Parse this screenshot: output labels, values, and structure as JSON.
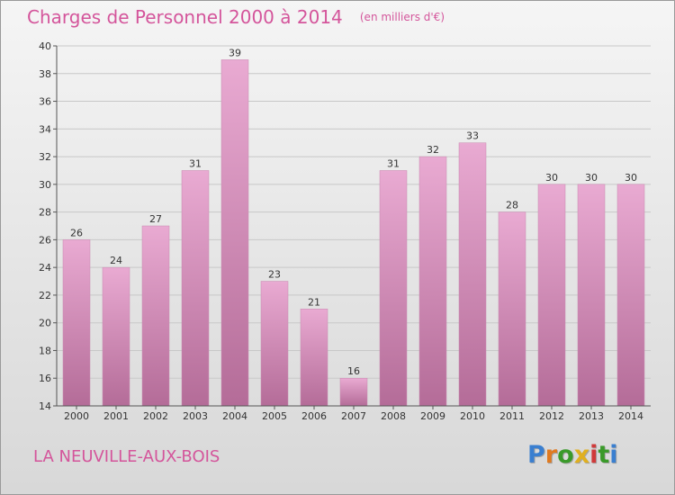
{
  "title": "Charges de Personnel 2000 à 2014",
  "subtitle": "(en milliers d'€)",
  "commune": "LA NEUVILLE-AUX-BOIS",
  "logo": {
    "text": "Proxiti",
    "letter_colors": [
      "#3a7fd0",
      "#e07a20",
      "#3a9a2a",
      "#e0b020",
      "#d03a3a",
      "#3a9a2a",
      "#3a7fd0"
    ]
  },
  "colors": {
    "bar_top": "#e9aad2",
    "bar_bottom": "#b46c98",
    "text_accent": "#d4559b",
    "grid": "#c8c8c8"
  },
  "chart_data": {
    "type": "bar",
    "title": "Charges de Personnel 2000 à 2014",
    "subtitle": "(en milliers d'€)",
    "categories": [
      "2000",
      "2001",
      "2002",
      "2003",
      "2004",
      "2005",
      "2006",
      "2007",
      "2008",
      "2009",
      "2010",
      "2011",
      "2012",
      "2013",
      "2014"
    ],
    "values": [
      26,
      24,
      27,
      31,
      39,
      23,
      21,
      16,
      31,
      32,
      33,
      28,
      30,
      30,
      30
    ],
    "ylim": [
      14,
      40
    ],
    "yticks": [
      14,
      16,
      18,
      20,
      22,
      24,
      26,
      28,
      30,
      32,
      34,
      36,
      38,
      40
    ],
    "grid": true,
    "data_labels": true
  }
}
